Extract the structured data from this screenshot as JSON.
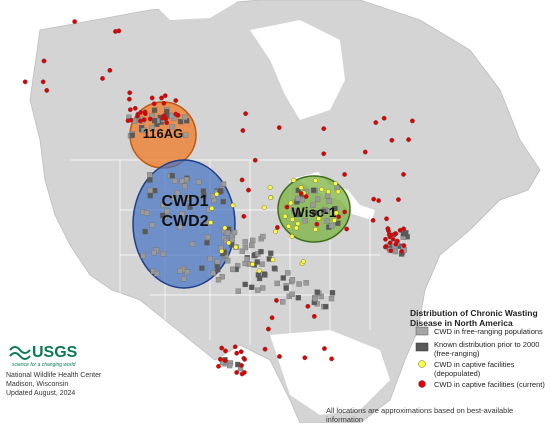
{
  "zones": [
    {
      "label": "116AG"
    },
    {
      "label": "CWD1"
    },
    {
      "label": "CWD2"
    },
    {
      "label": "Wisc-1"
    }
  ],
  "legend": {
    "title": "Distribution of Chronic Wasting Disease in North America",
    "items": [
      {
        "label": "CWD in free-ranging populations"
      },
      {
        "label": "Known distribution prior to 2000 (free-ranging)"
      },
      {
        "label": "CWD in captive facilities (depopulated)"
      },
      {
        "label": "CWD in captive facilities (current)"
      }
    ]
  },
  "logo": {
    "name": "USGS",
    "tagline": "science for a changing world"
  },
  "credit": [
    "National Wildlife Health Center",
    "Madison, Wisconsin",
    "Updated August, 2024"
  ],
  "note": "All locations are approximations based on best-available information"
}
